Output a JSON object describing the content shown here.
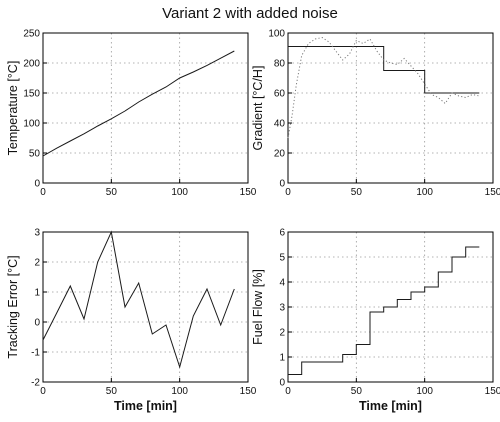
{
  "figure_title": "Variant 2 with added noise",
  "colors": {
    "line": "#1a1a1a",
    "dotted_line": "#7a7a7a",
    "grid": "#9a9a9a",
    "frame": "#000000",
    "background": "#ffffff"
  },
  "chart_data": [
    {
      "type": "line",
      "title": "",
      "xlabel": "",
      "ylabel": "Temperature [°C]",
      "xlim": [
        0,
        150
      ],
      "ylim": [
        0,
        250
      ],
      "xticks": [
        0,
        50,
        100,
        150
      ],
      "yticks": [
        0,
        50,
        100,
        150,
        200,
        250
      ],
      "grid": true,
      "series": [
        {
          "style": "solid",
          "x": [
            0,
            10,
            20,
            30,
            40,
            50,
            60,
            70,
            80,
            90,
            100,
            110,
            120,
            130,
            140
          ],
          "y": [
            45,
            58,
            70,
            82,
            95,
            107,
            120,
            135,
            148,
            160,
            175,
            185,
            196,
            208,
            220
          ]
        }
      ]
    },
    {
      "type": "line",
      "title": "",
      "xlabel": "",
      "ylabel": "Gradient [°C/H]",
      "xlim": [
        0,
        150
      ],
      "ylim": [
        0,
        100
      ],
      "xticks": [
        0,
        50,
        100,
        150
      ],
      "yticks": [
        0,
        20,
        40,
        60,
        80,
        100
      ],
      "grid": true,
      "series": [
        {
          "style": "step",
          "x": [
            0,
            70,
            70,
            100,
            100,
            140
          ],
          "y": [
            91,
            91,
            75,
            75,
            60,
            60
          ]
        },
        {
          "style": "dotted",
          "x": [
            0,
            3,
            6,
            10,
            15,
            20,
            25,
            30,
            35,
            40,
            45,
            50,
            55,
            60,
            65,
            70,
            75,
            80,
            85,
            90,
            95,
            100,
            105,
            110,
            115,
            120,
            125,
            130,
            135,
            140
          ],
          "y": [
            30,
            45,
            65,
            85,
            93,
            96,
            97,
            94,
            88,
            82,
            86,
            95,
            93,
            96,
            88,
            82,
            80,
            79,
            83,
            78,
            73,
            66,
            59,
            57,
            53,
            60,
            58,
            57,
            59,
            58
          ]
        }
      ]
    },
    {
      "type": "line",
      "title": "",
      "xlabel": "Time [min]",
      "ylabel": "Tracking Error [°C]",
      "xlim": [
        0,
        150
      ],
      "ylim": [
        -2,
        3
      ],
      "xticks": [
        0,
        50,
        100,
        150
      ],
      "yticks": [
        -2,
        -1,
        0,
        1,
        2,
        3
      ],
      "grid": true,
      "series": [
        {
          "style": "solid",
          "x": [
            0,
            10,
            20,
            30,
            40,
            50,
            60,
            70,
            80,
            90,
            100,
            110,
            120,
            130,
            140
          ],
          "y": [
            -0.6,
            0.3,
            1.2,
            0.1,
            2.0,
            3.0,
            0.5,
            1.3,
            -0.4,
            -0.1,
            -1.5,
            0.2,
            1.1,
            -0.1,
            1.1
          ]
        }
      ]
    },
    {
      "type": "line",
      "title": "",
      "xlabel": "Time [min]",
      "ylabel": "Fuel Flow [%]",
      "xlim": [
        0,
        150
      ],
      "ylim": [
        0,
        6
      ],
      "xticks": [
        0,
        50,
        100,
        150
      ],
      "yticks": [
        0,
        1,
        2,
        3,
        4,
        5,
        6
      ],
      "grid": true,
      "series": [
        {
          "style": "step",
          "x": [
            0,
            10,
            10,
            40,
            40,
            50,
            50,
            60,
            60,
            70,
            70,
            80,
            80,
            90,
            90,
            100,
            100,
            110,
            110,
            120,
            120,
            130,
            130,
            140
          ],
          "y": [
            0.3,
            0.3,
            0.8,
            0.8,
            1.1,
            1.1,
            1.5,
            1.5,
            2.8,
            2.8,
            3.0,
            3.0,
            3.3,
            3.3,
            3.6,
            3.6,
            3.8,
            3.8,
            4.4,
            4.4,
            5.0,
            5.0,
            5.4,
            5.4
          ]
        }
      ]
    }
  ]
}
